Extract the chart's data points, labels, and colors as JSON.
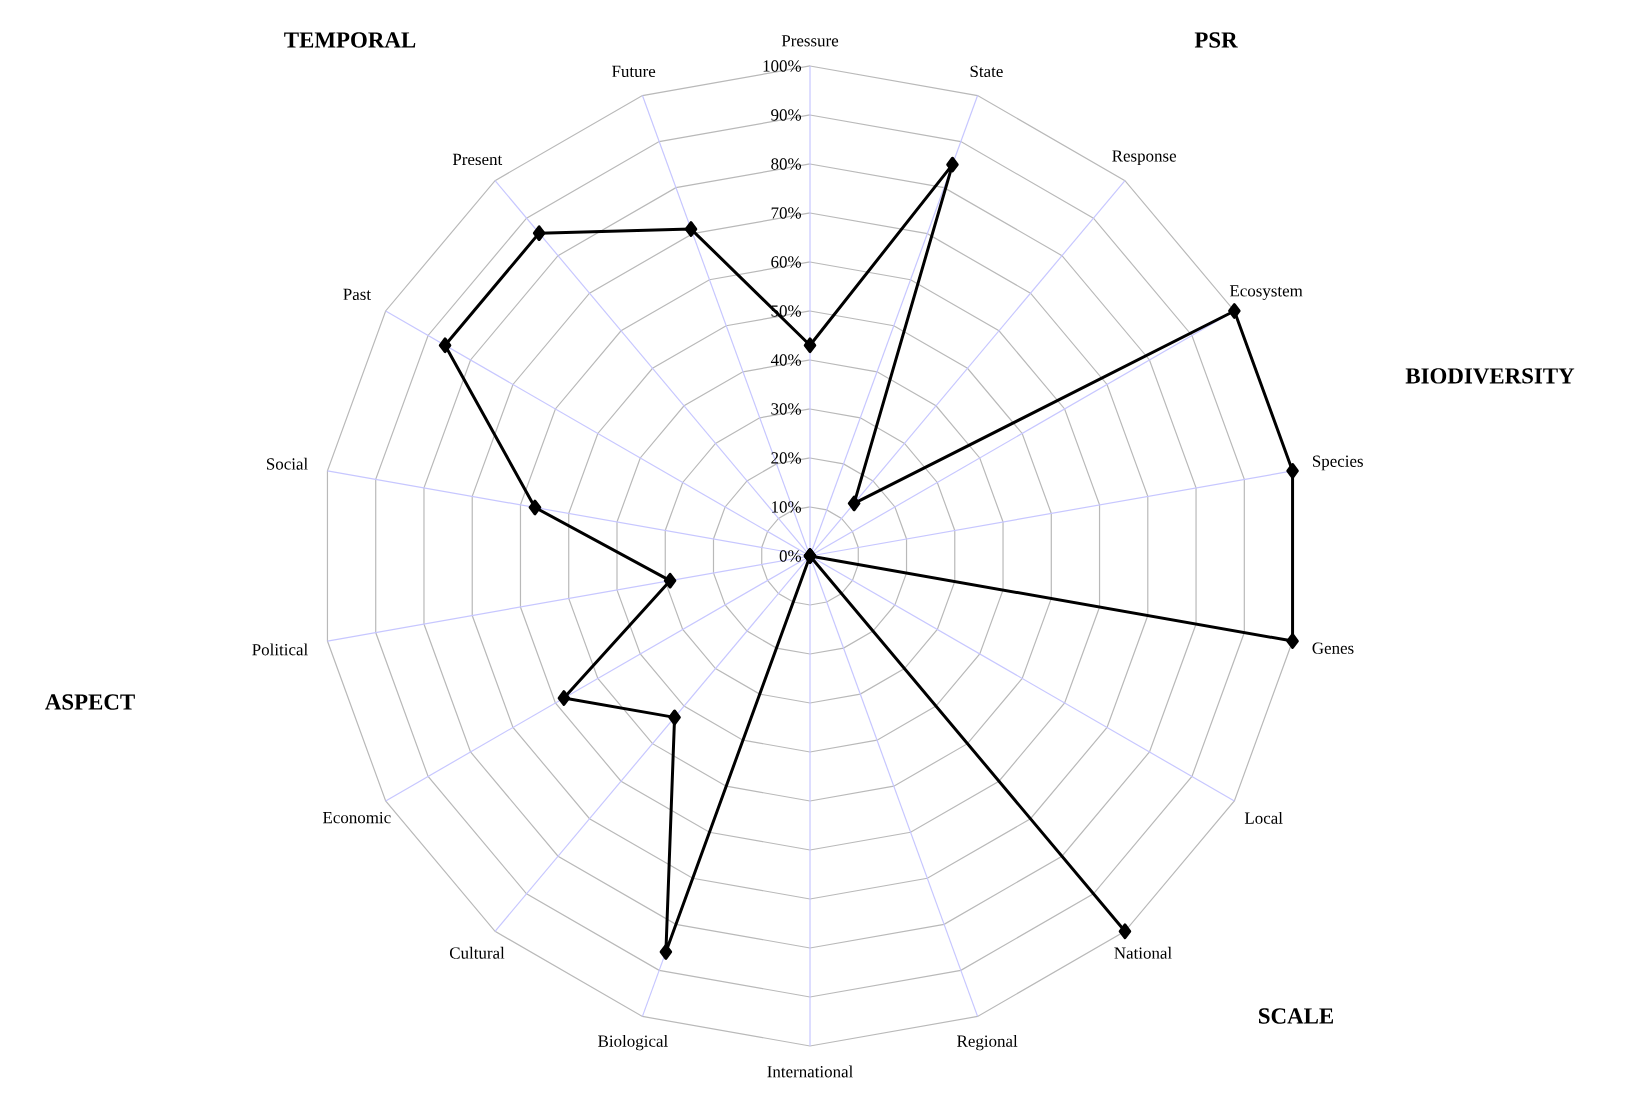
{
  "chart_data": {
    "type": "radar",
    "categories": [
      "Pressure",
      "State",
      "Response",
      "Ecosystem",
      "Species",
      "Genes",
      "Local",
      "National",
      "Regional",
      "International",
      "Biological",
      "Cultural",
      "Economic",
      "Political",
      "Social",
      "Past",
      "Present",
      "Future"
    ],
    "series": [
      {
        "color": "#000000",
        "values": [
          43,
          85,
          14,
          100,
          100,
          100,
          0,
          100,
          0,
          0,
          86,
          43,
          58,
          29,
          57,
          86,
          86,
          71
        ]
      }
    ],
    "ylim": [
      0,
      100
    ],
    "yticks": [
      {
        "value": 0,
        "label": "0%"
      },
      {
        "value": 10,
        "label": "10%"
      },
      {
        "value": 20,
        "label": "20%"
      },
      {
        "value": 30,
        "label": "30%"
      },
      {
        "value": 40,
        "label": "40%"
      },
      {
        "value": 50,
        "label": "50%"
      },
      {
        "value": 60,
        "label": "60%"
      },
      {
        "value": 70,
        "label": "70%"
      },
      {
        "value": 80,
        "label": "80%"
      },
      {
        "value": 90,
        "label": "90%"
      },
      {
        "value": 100,
        "label": "100%"
      }
    ],
    "grid": true,
    "marker": "diamond",
    "annotations": [
      "PSR",
      "BIODIVERSITY",
      "SCALE",
      "ASPECT",
      "TEMPORAL"
    ]
  }
}
